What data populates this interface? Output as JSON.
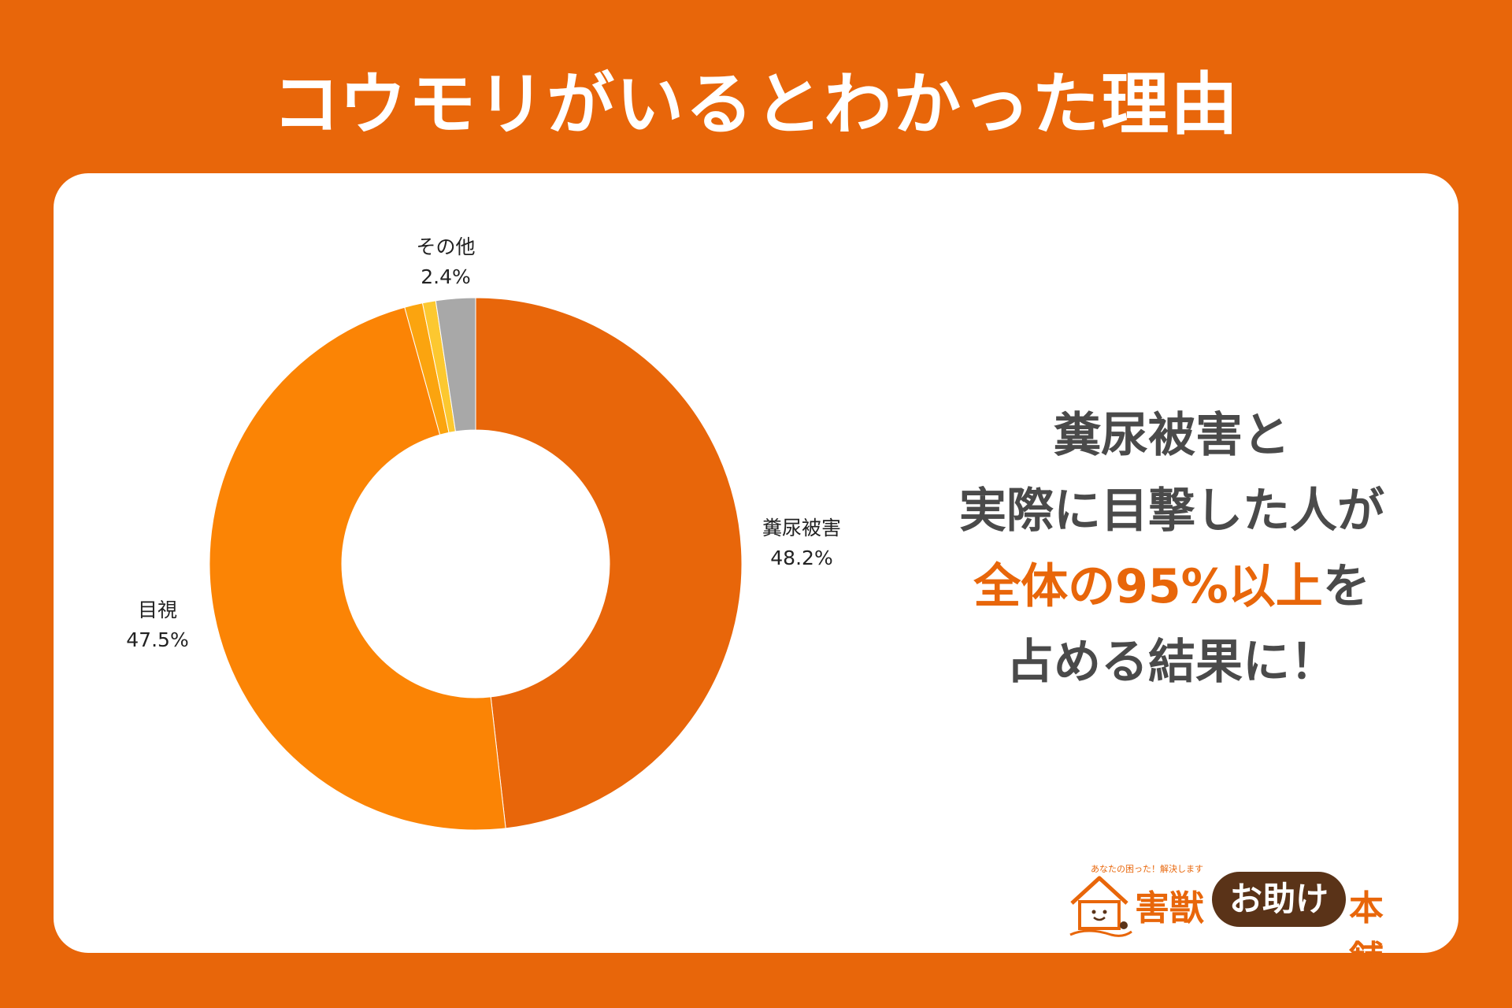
{
  "title": "コウモリがいるとわかった理由",
  "headline": {
    "line1": "糞尿被害と",
    "line2": "実際に目撃した人が",
    "line3_accent": "全体の95%以上",
    "line3_rest": "を",
    "line4": "占める結果に！"
  },
  "chart_data": {
    "type": "pie",
    "style": "donut",
    "slices": [
      {
        "label": "糞尿被害",
        "value": 48.2,
        "value_label": "48.2%",
        "color": "#e8660a"
      },
      {
        "label": "目視",
        "value": 47.5,
        "value_label": "47.5%",
        "color": "#fb8405"
      },
      {
        "label": "",
        "value": 1.1,
        "value_label": "",
        "color": "#fba40f"
      },
      {
        "label": "",
        "value": 0.8,
        "value_label": "",
        "color": "#fcc830"
      },
      {
        "label": "その他",
        "value": 2.4,
        "value_label": "2.4%",
        "color": "#a8a8a8"
      }
    ]
  },
  "logo": {
    "tagline": "あなたの困った！解決します",
    "text1": "害獣",
    "pill": "お助け",
    "text2": "本舗"
  }
}
